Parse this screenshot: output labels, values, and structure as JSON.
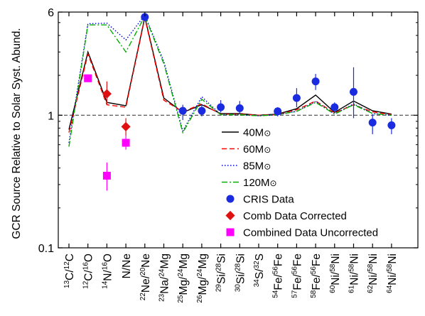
{
  "chart_data": {
    "type": "line",
    "ylabel": "GCR Source Relative to Solar Syst. Abund.",
    "xlabel": "",
    "yscale": "log",
    "ylim": [
      0.1,
      6
    ],
    "yticks": [
      {
        "value": 0.1,
        "label": "0.1"
      },
      {
        "value": 1,
        "label": "1"
      },
      {
        "value": 6,
        "label": "6"
      }
    ],
    "reference_line": {
      "value": 1,
      "style": "dashed",
      "color": "#666666"
    },
    "grid": false,
    "legend_position": "lower-center",
    "categories": [
      {
        "num_mass": "13",
        "num_el": "C",
        "den_mass": "12",
        "den_el": "C",
        "text": "13C/12C"
      },
      {
        "num_mass": "12",
        "num_el": "C",
        "den_mass": "16",
        "den_el": "O",
        "text": "12C/16O"
      },
      {
        "num_mass": "14",
        "num_el": "N",
        "den_mass": "16",
        "den_el": "O",
        "text": "14N/16O"
      },
      {
        "num_mass": "",
        "num_el": "N",
        "den_mass": "",
        "den_el": "Ne",
        "text": "N/Ne"
      },
      {
        "num_mass": "22",
        "num_el": "Ne",
        "den_mass": "20",
        "den_el": "Ne",
        "text": "22Ne/20Ne"
      },
      {
        "num_mass": "23",
        "num_el": "Na",
        "den_mass": "24",
        "den_el": "Mg",
        "text": "23Na/24Mg"
      },
      {
        "num_mass": "25",
        "num_el": "Mg",
        "den_mass": "24",
        "den_el": "Mg",
        "text": "25Mg/24Mg"
      },
      {
        "num_mass": "26",
        "num_el": "Mg",
        "den_mass": "24",
        "den_el": "Mg",
        "text": "26Mg/24Mg"
      },
      {
        "num_mass": "29",
        "num_el": "Si",
        "den_mass": "28",
        "den_el": "Si",
        "text": "29Si/28Si"
      },
      {
        "num_mass": "30",
        "num_el": "Si",
        "den_mass": "28",
        "den_el": "Si",
        "text": "30Si/28Si"
      },
      {
        "num_mass": "34",
        "num_el": "S",
        "den_mass": "32",
        "den_el": "S",
        "text": "34S/32S"
      },
      {
        "num_mass": "54",
        "num_el": "Fe",
        "den_mass": "56",
        "den_el": "Fe",
        "text": "54Fe/56Fe"
      },
      {
        "num_mass": "57",
        "num_el": "Fe",
        "den_mass": "56",
        "den_el": "Fe",
        "text": "57Fe/56Fe"
      },
      {
        "num_mass": "58",
        "num_el": "Fe",
        "den_mass": "56",
        "den_el": "Fe",
        "text": "58Fe/56Fe"
      },
      {
        "num_mass": "60",
        "num_el": "Ni",
        "den_mass": "58",
        "den_el": "Ni",
        "text": "60Ni/58Ni"
      },
      {
        "num_mass": "61",
        "num_el": "Ni",
        "den_mass": "58",
        "den_el": "Ni",
        "text": "61Ni/58Ni"
      },
      {
        "num_mass": "62",
        "num_el": "Ni",
        "den_mass": "58",
        "den_el": "Ni",
        "text": "62Ni/58Ni"
      },
      {
        "num_mass": "64",
        "num_el": "Ni",
        "den_mass": "58",
        "den_el": "Ni",
        "text": "64Ni/58Ni"
      }
    ],
    "series": [
      {
        "name": "40M",
        "style": "solid",
        "color": "#000000",
        "values": [
          0.78,
          3.0,
          1.25,
          1.18,
          5.5,
          1.35,
          1.05,
          1.2,
          1.03,
          1.03,
          1.0,
          1.02,
          1.12,
          1.42,
          1.05,
          1.28,
          1.08,
          1.02
        ]
      },
      {
        "name": "60M",
        "style": "dashed",
        "color": "#ff0000",
        "values": [
          0.74,
          2.9,
          1.2,
          1.15,
          5.4,
          1.3,
          1.06,
          1.22,
          1.02,
          1.02,
          1.0,
          1.01,
          1.1,
          1.28,
          1.04,
          1.2,
          1.06,
          1.01
        ]
      },
      {
        "name": "85M",
        "style": "dotted",
        "color": "#0000cc",
        "values": [
          0.62,
          4.9,
          4.95,
          3.7,
          5.7,
          2.55,
          0.76,
          1.38,
          1.01,
          1.01,
          0.99,
          1.01,
          1.07,
          1.27,
          1.02,
          1.22,
          1.03,
          1.0
        ]
      },
      {
        "name": "120M",
        "style": "dashdot",
        "color": "#00b000",
        "values": [
          0.58,
          4.8,
          4.8,
          3.0,
          5.6,
          2.45,
          0.74,
          1.32,
          1.01,
          1.01,
          0.99,
          1.01,
          1.07,
          1.25,
          1.02,
          1.2,
          1.03,
          1.0
        ]
      }
    ],
    "markers": [
      {
        "name": "CRIS Data",
        "shape": "circle",
        "color": "#1a2be0",
        "points": [
          {
            "cat": 4,
            "y": 5.5,
            "err_lo": 5.5,
            "err_hi": 5.5
          },
          {
            "cat": 6,
            "y": 1.08,
            "err_lo": 0.92,
            "err_hi": 1.2
          },
          {
            "cat": 7,
            "y": 1.08,
            "err_lo": 0.98,
            "err_hi": 1.2
          },
          {
            "cat": 8,
            "y": 1.15,
            "err_lo": 1.05,
            "err_hi": 1.3
          },
          {
            "cat": 9,
            "y": 1.13,
            "err_lo": 1.03,
            "err_hi": 1.28
          },
          {
            "cat": 11,
            "y": 1.07,
            "err_lo": 0.98,
            "err_hi": 1.15
          },
          {
            "cat": 12,
            "y": 1.35,
            "err_lo": 1.15,
            "err_hi": 1.6
          },
          {
            "cat": 13,
            "y": 1.8,
            "err_lo": 1.55,
            "err_hi": 2.05
          },
          {
            "cat": 14,
            "y": 1.15,
            "err_lo": 1.07,
            "err_hi": 1.25
          },
          {
            "cat": 15,
            "y": 1.5,
            "err_lo": 0.95,
            "err_hi": 2.3
          },
          {
            "cat": 16,
            "y": 0.88,
            "err_lo": 0.72,
            "err_hi": 1.02
          },
          {
            "cat": 17,
            "y": 0.84,
            "err_lo": 0.72,
            "err_hi": 0.95
          }
        ]
      },
      {
        "name": "Comb Data Corrected",
        "shape": "diamond",
        "color": "#e01010",
        "points": [
          {
            "cat": 2,
            "y": 1.45,
            "err_lo": 1.2,
            "err_hi": 1.8
          },
          {
            "cat": 3,
            "y": 0.82,
            "err_lo": 0.7,
            "err_hi": 0.95
          }
        ]
      },
      {
        "name": "Combined Data Uncorrected",
        "shape": "square",
        "color": "#ff00ff",
        "points": [
          {
            "cat": 1,
            "y": 1.9,
            "err_lo": 1.9,
            "err_hi": 1.9
          },
          {
            "cat": 2,
            "y": 0.35,
            "err_lo": 0.27,
            "err_hi": 0.44
          },
          {
            "cat": 3,
            "y": 0.62,
            "err_lo": 0.55,
            "err_hi": 0.7
          }
        ]
      }
    ]
  }
}
